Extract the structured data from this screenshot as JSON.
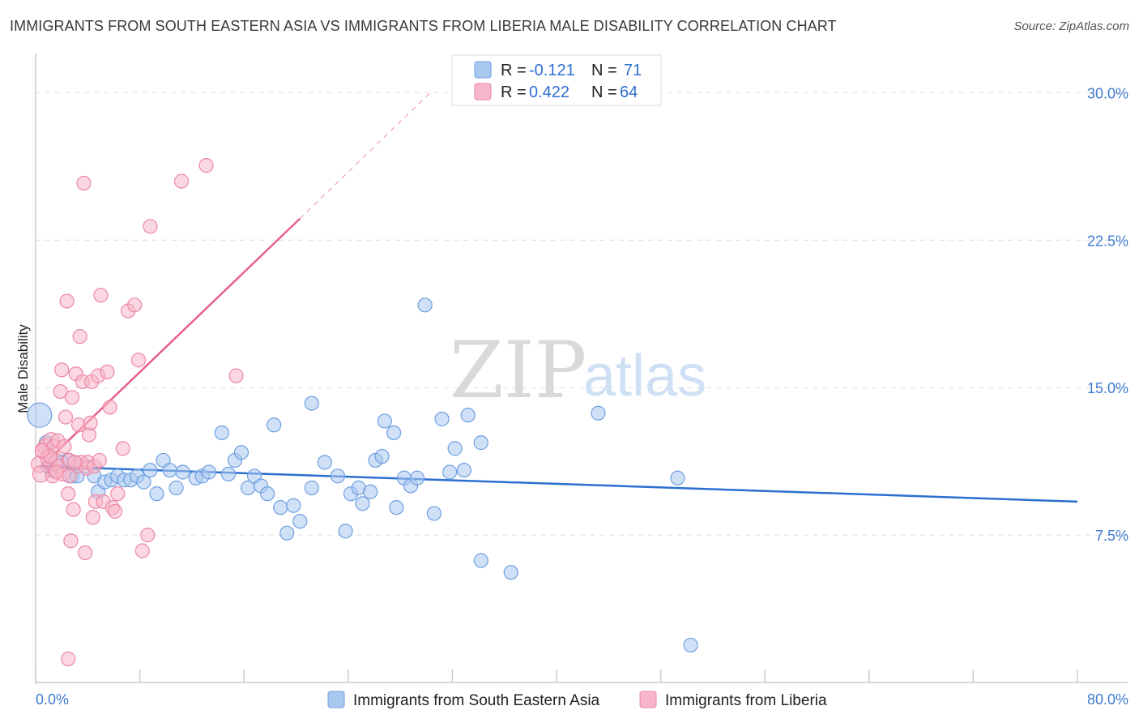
{
  "title": "IMMIGRANTS FROM SOUTH EASTERN ASIA VS IMMIGRANTS FROM LIBERIA MALE DISABILITY CORRELATION CHART",
  "source": "Source: ZipAtlas.com",
  "watermark": {
    "zip": "ZIP",
    "atlas": "atlas"
  },
  "legend": {
    "r_label": "R =",
    "n_label": "N =",
    "rows": [
      {
        "r": "-0.121",
        "n": "71",
        "color": "#a9c8f0"
      },
      {
        "r": "0.422",
        "n": "64",
        "color": "#f7b6c9"
      }
    ]
  },
  "chart_data": {
    "type": "scatter",
    "title": "IMMIGRANTS FROM SOUTH EASTERN ASIA VS IMMIGRANTS FROM LIBERIA MALE DISABILITY CORRELATION CHART",
    "xlabel": "",
    "ylabel": "Male Disability",
    "xlim": [
      0,
      80
    ],
    "ylim": [
      0,
      31.5
    ],
    "x_tick_labels": [
      "0.0%",
      "80.0%"
    ],
    "y_ticks": [
      7.5,
      15.0,
      22.5,
      30.0
    ],
    "y_tick_labels": [
      "7.5%",
      "15.0%",
      "22.5%",
      "30.0%"
    ],
    "grid": true,
    "legend_position": "top-center",
    "series": [
      {
        "name": "Immigrants from South Eastern Asia",
        "color": "#a9c8f0",
        "stroke": "#6f9fe0",
        "trend": {
          "x1": 0.3,
          "y1": 11.0,
          "x2": 80.0,
          "y2": 9.2,
          "color": "#2b6fd0"
        },
        "points": [
          [
            0.3,
            13.6
          ],
          [
            0.8,
            12.2
          ],
          [
            1.2,
            10.8
          ],
          [
            1.6,
            11.2
          ],
          [
            2.0,
            11.2
          ],
          [
            2.8,
            10.5
          ],
          [
            3.2,
            10.5
          ],
          [
            3.8,
            11.0
          ],
          [
            4.5,
            10.5
          ],
          [
            4.8,
            9.7
          ],
          [
            5.3,
            10.2
          ],
          [
            5.8,
            10.3
          ],
          [
            6.3,
            10.5
          ],
          [
            6.8,
            10.3
          ],
          [
            7.3,
            10.3
          ],
          [
            7.8,
            10.5
          ],
          [
            8.3,
            10.2
          ],
          [
            8.8,
            10.8
          ],
          [
            9.3,
            9.6
          ],
          [
            9.8,
            11.3
          ],
          [
            10.3,
            10.8
          ],
          [
            10.8,
            9.9
          ],
          [
            11.3,
            10.7
          ],
          [
            12.3,
            10.4
          ],
          [
            12.8,
            10.5
          ],
          [
            13.3,
            10.7
          ],
          [
            14.3,
            12.7
          ],
          [
            14.8,
            10.6
          ],
          [
            15.3,
            11.3
          ],
          [
            15.8,
            11.7
          ],
          [
            16.3,
            9.9
          ],
          [
            16.8,
            10.5
          ],
          [
            17.3,
            10.0
          ],
          [
            17.8,
            9.6
          ],
          [
            18.3,
            13.1
          ],
          [
            18.8,
            8.9
          ],
          [
            19.3,
            7.6
          ],
          [
            19.8,
            9.0
          ],
          [
            20.3,
            8.2
          ],
          [
            21.2,
            14.2
          ],
          [
            21.2,
            9.9
          ],
          [
            22.2,
            11.2
          ],
          [
            23.2,
            10.5
          ],
          [
            23.8,
            7.7
          ],
          [
            24.2,
            9.6
          ],
          [
            24.8,
            9.9
          ],
          [
            25.1,
            9.1
          ],
          [
            25.7,
            9.7
          ],
          [
            26.1,
            11.3
          ],
          [
            26.6,
            11.5
          ],
          [
            26.8,
            13.3
          ],
          [
            27.5,
            12.7
          ],
          [
            27.7,
            8.9
          ],
          [
            28.3,
            10.4
          ],
          [
            28.8,
            10.0
          ],
          [
            29.3,
            10.4
          ],
          [
            29.9,
            19.2
          ],
          [
            30.6,
            8.6
          ],
          [
            31.2,
            13.4
          ],
          [
            31.8,
            10.7
          ],
          [
            32.2,
            11.9
          ],
          [
            32.9,
            10.8
          ],
          [
            33.2,
            13.6
          ],
          [
            34.2,
            12.2
          ],
          [
            34.2,
            6.2
          ],
          [
            36.5,
            5.6
          ],
          [
            43.2,
            13.7
          ],
          [
            49.3,
            10.4
          ],
          [
            50.3,
            1.9
          ],
          [
            1.0,
            11.0
          ],
          [
            2.5,
            11.3
          ]
        ]
      },
      {
        "name": "Immigrants from Liberia",
        "color": "#f7b6c9",
        "stroke": "#ec87a6",
        "trend": {
          "x1": 0.3,
          "y1": 10.9,
          "x2": 20.3,
          "y2": 23.6,
          "color": "#e8608a",
          "dash_to": {
            "x": 30.3,
            "y": 30.0
          }
        },
        "points": [
          [
            0.3,
            11.1
          ],
          [
            0.4,
            10.6
          ],
          [
            0.6,
            11.8
          ],
          [
            0.8,
            12.0
          ],
          [
            1.0,
            11.4
          ],
          [
            1.2,
            12.3
          ],
          [
            1.3,
            10.5
          ],
          [
            1.4,
            12.0
          ],
          [
            1.5,
            10.8
          ],
          [
            1.6,
            11.3
          ],
          [
            1.7,
            12.3
          ],
          [
            1.8,
            11.0
          ],
          [
            1.9,
            14.8
          ],
          [
            2.0,
            15.9
          ],
          [
            2.1,
            10.6
          ],
          [
            2.2,
            12.0
          ],
          [
            2.3,
            13.5
          ],
          [
            2.4,
            19.4
          ],
          [
            2.5,
            9.6
          ],
          [
            2.6,
            11.3
          ],
          [
            2.7,
            7.2
          ],
          [
            2.8,
            14.5
          ],
          [
            2.9,
            8.8
          ],
          [
            3.1,
            15.7
          ],
          [
            3.2,
            11.0
          ],
          [
            3.3,
            13.1
          ],
          [
            3.4,
            17.6
          ],
          [
            3.5,
            11.2
          ],
          [
            3.6,
            15.3
          ],
          [
            3.7,
            25.4
          ],
          [
            3.8,
            6.6
          ],
          [
            3.9,
            10.9
          ],
          [
            4.0,
            11.2
          ],
          [
            4.1,
            12.6
          ],
          [
            4.2,
            13.2
          ],
          [
            4.3,
            15.3
          ],
          [
            4.4,
            8.4
          ],
          [
            4.5,
            11.0
          ],
          [
            4.6,
            9.2
          ],
          [
            4.8,
            15.6
          ],
          [
            4.9,
            11.3
          ],
          [
            5.0,
            19.7
          ],
          [
            5.2,
            9.2
          ],
          [
            5.5,
            15.8
          ],
          [
            5.7,
            14.0
          ],
          [
            5.9,
            8.9
          ],
          [
            6.1,
            8.7
          ],
          [
            6.3,
            9.6
          ],
          [
            6.7,
            11.9
          ],
          [
            7.1,
            18.9
          ],
          [
            7.6,
            19.2
          ],
          [
            7.9,
            16.4
          ],
          [
            8.2,
            6.7
          ],
          [
            8.6,
            7.5
          ],
          [
            8.8,
            23.2
          ],
          [
            11.2,
            25.5
          ],
          [
            13.1,
            26.3
          ],
          [
            15.4,
            15.6
          ],
          [
            2.6,
            10.5
          ],
          [
            1.1,
            11.5
          ],
          [
            2.5,
            1.2
          ],
          [
            0.5,
            11.8
          ],
          [
            1.6,
            10.7
          ],
          [
            3.0,
            11.2
          ]
        ]
      }
    ]
  },
  "bottom_legend": [
    {
      "label": "Immigrants from South Eastern Asia",
      "color": "#a9c8f0",
      "stroke": "#6f9fe0"
    },
    {
      "label": "Immigrants from Liberia",
      "color": "#f7b6c9",
      "stroke": "#ec87a6"
    }
  ]
}
